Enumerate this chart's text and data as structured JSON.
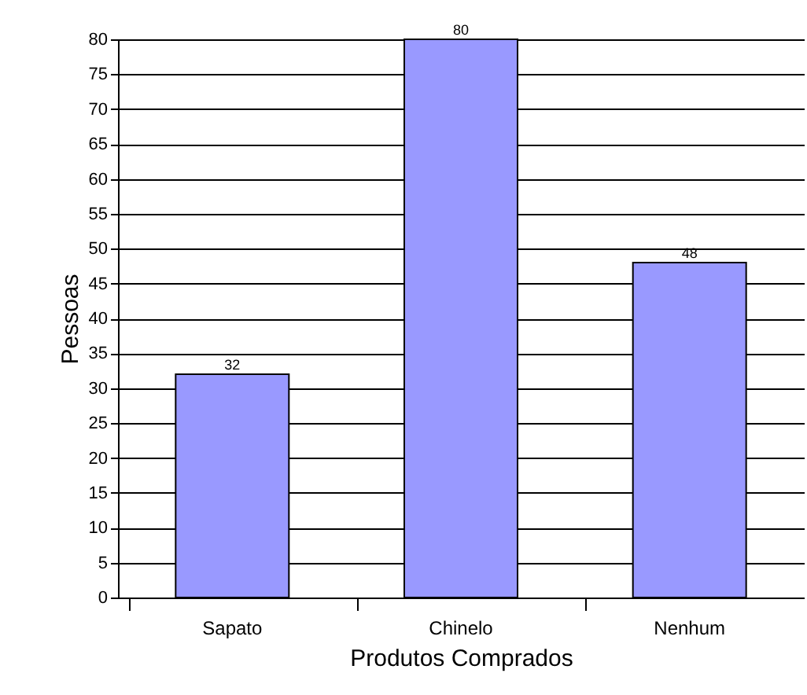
{
  "chart_data": {
    "type": "bar",
    "xlabel": "Produtos Comprados",
    "ylabel": "Pessoas",
    "categories": [
      "Sapato",
      "Chinelo",
      "Nenhum"
    ],
    "values": [
      32,
      80,
      48
    ],
    "color": "#9999ff",
    "ylim": [
      0,
      80
    ],
    "yticks": [
      0,
      5,
      10,
      15,
      20,
      25,
      30,
      35,
      40,
      45,
      50,
      55,
      60,
      65,
      70,
      75,
      80
    ],
    "grid": "y",
    "data_labels": true
  }
}
